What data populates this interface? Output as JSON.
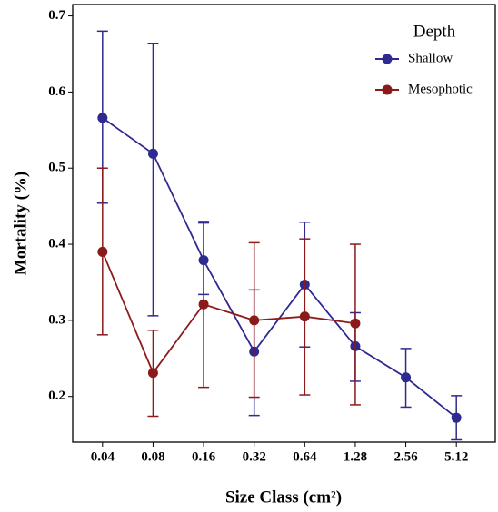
{
  "chart_data": {
    "type": "line",
    "x_label": "Size Class (cm²)",
    "y_label": "Mortality (%)",
    "categories": [
      "0.04",
      "0.08",
      "0.16",
      "0.32",
      "0.64",
      "1.28",
      "2.56",
      "5.12"
    ],
    "ylim": [
      0.14,
      0.715
    ],
    "yticks": [
      0.2,
      0.3,
      0.4,
      0.5,
      0.6,
      0.7
    ],
    "legend_title": "Depth",
    "legend_position": "upper right",
    "series": [
      {
        "name": "Shallow",
        "color": "#2e2a8f",
        "values": [
          0.566,
          0.519,
          0.379,
          0.259,
          0.347,
          0.266,
          0.225,
          0.172
        ],
        "lower": [
          0.454,
          0.306,
          0.334,
          0.175,
          0.265,
          0.22,
          0.186,
          0.143
        ],
        "upper": [
          0.68,
          0.664,
          0.428,
          0.34,
          0.429,
          0.31,
          0.263,
          0.201
        ]
      },
      {
        "name": "Mesophotic",
        "color": "#8b1a1a",
        "values": [
          0.39,
          0.231,
          0.321,
          0.3,
          0.305,
          0.296,
          null,
          null
        ],
        "lower": [
          0.281,
          0.174,
          0.212,
          0.199,
          0.202,
          0.189,
          null,
          null
        ],
        "upper": [
          0.5,
          0.287,
          0.43,
          0.402,
          0.407,
          0.4,
          null,
          null
        ]
      }
    ]
  }
}
